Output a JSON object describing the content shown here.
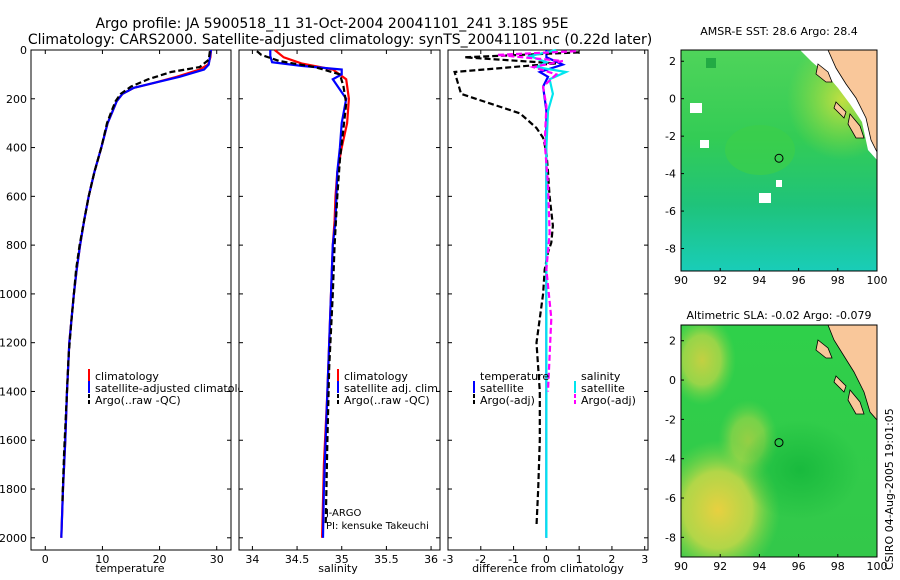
{
  "title_line1": "Argo profile: JA 5900518_11 31-Oct-2004 20041101_241 3.18S 95E",
  "title_line2": "Climatology: CARS2000. Satellite-adjusted climatology: synTS_20041101.nc (0.22d later)",
  "side_stamp": "CSIRO 04-Aug-2005 19:01:05",
  "colors": {
    "climatology": "#ff0000",
    "satellite": "#0000ff",
    "argo": "#000000",
    "satellite_sal": "#00e5ee",
    "argo_sal": "#ff00ff"
  },
  "chart_data": [
    {
      "id": "temperature",
      "type": "line",
      "xlabel": "temperature",
      "ylabel": "",
      "xlim": [
        -2.5,
        32.5
      ],
      "ylim": [
        2050,
        0
      ],
      "xticks": [
        0,
        10,
        20,
        30
      ],
      "yticks": [
        0,
        200,
        400,
        600,
        800,
        1000,
        1200,
        1400,
        1600,
        1800,
        2000
      ],
      "legend": [
        "climatology",
        "satellite-adjusted climatology",
        "Argo(..raw -QC)"
      ],
      "series": [
        {
          "name": "climatology",
          "color": "#ff0000",
          "dashed": false,
          "x": [
            29.0,
            28.9,
            28.5,
            27.0,
            23.0,
            19.0,
            15.5,
            13.5,
            12.5,
            11.8,
            10.9,
            9.8,
            8.6,
            7.6,
            6.8,
            6.1,
            5.5,
            5.0,
            4.6,
            4.2,
            3.8,
            3.5,
            3.1,
            2.8
          ],
          "y": [
            0,
            30,
            60,
            80,
            110,
            135,
            155,
            180,
            210,
            250,
            300,
            400,
            500,
            600,
            700,
            800,
            900,
            1000,
            1100,
            1200,
            1400,
            1600,
            1800,
            2000
          ]
        },
        {
          "name": "satellite-adjusted climatology",
          "color": "#0000ff",
          "dashed": false,
          "x": [
            29.0,
            28.8,
            28.6,
            27.8,
            23.5,
            19.0,
            15.5,
            13.5,
            12.5,
            11.8,
            10.9,
            9.8,
            8.6,
            7.6,
            6.8,
            6.1,
            5.5,
            5.0,
            4.6,
            4.2,
            3.8,
            3.5,
            3.1,
            2.8
          ],
          "y": [
            0,
            30,
            60,
            80,
            110,
            135,
            155,
            180,
            210,
            250,
            300,
            400,
            500,
            600,
            700,
            800,
            900,
            1000,
            1100,
            1200,
            1400,
            1600,
            1800,
            2000
          ]
        },
        {
          "name": "Argo(..raw -QC)",
          "color": "#000000",
          "dashed": true,
          "x": [
            28.8,
            28.6,
            27.0,
            22.0,
            18.0,
            15.0,
            13.2,
            12.3,
            11.6,
            10.8,
            9.8,
            8.6,
            7.6,
            6.8,
            6.0,
            5.4,
            5.0,
            4.6,
            4.1,
            3.7,
            3.3,
            3.0
          ],
          "y": [
            5,
            40,
            70,
            90,
            120,
            150,
            180,
            210,
            250,
            300,
            400,
            500,
            600,
            700,
            800,
            900,
            1000,
            1100,
            1250,
            1450,
            1650,
            1850
          ]
        }
      ]
    },
    {
      "id": "salinity",
      "type": "line",
      "xlabel": "salinity",
      "ylabel": "",
      "xlim": [
        33.85,
        36.1
      ],
      "ylim": [
        2050,
        0
      ],
      "xticks": [
        34,
        34.5,
        35,
        35.5,
        36
      ],
      "yticks": [],
      "legend": [
        "climatology",
        "satellite adj. clim.",
        "Argo(..raw -QC)"
      ],
      "annotations": [
        "J-ARGO",
        "PI: kensuke Takeuchi"
      ],
      "series": [
        {
          "name": "climatology",
          "color": "#ff0000",
          "dashed": false,
          "x": [
            34.25,
            34.35,
            34.55,
            34.9,
            35.05,
            35.08,
            35.06,
            35.0,
            34.95,
            34.93,
            34.92,
            34.9,
            34.88,
            34.86,
            34.84,
            34.8,
            34.78
          ],
          "y": [
            0,
            30,
            55,
            80,
            120,
            200,
            300,
            400,
            500,
            600,
            700,
            800,
            1000,
            1200,
            1400,
            1700,
            2000
          ]
        },
        {
          "name": "satellite adj. clim.",
          "color": "#0000ff",
          "dashed": false,
          "x": [
            34.2,
            34.2,
            34.22,
            34.55,
            35.0,
            35.0,
            34.9,
            35.05,
            35.0,
            34.98,
            34.95,
            34.94,
            34.93,
            34.9,
            34.88,
            34.86,
            34.84,
            34.82,
            34.8,
            34.79
          ],
          "y": [
            0,
            25,
            50,
            65,
            80,
            100,
            120,
            200,
            300,
            400,
            500,
            600,
            700,
            800,
            1000,
            1200,
            1400,
            1600,
            1800,
            2000
          ]
        },
        {
          "name": "Argo(..raw -QC)",
          "color": "#000000",
          "dashed": true,
          "x": [
            34.05,
            34.1,
            34.3,
            34.7,
            34.98,
            35.02,
            35.05,
            35.02,
            34.98,
            34.95,
            34.92,
            34.9,
            34.86,
            34.84,
            34.82
          ],
          "y": [
            5,
            20,
            45,
            70,
            100,
            150,
            220,
            320,
            450,
            600,
            800,
            1000,
            1300,
            1600,
            1950
          ]
        }
      ]
    },
    {
      "id": "difference",
      "type": "line",
      "xlabel": "difference from climatology",
      "ylabel": "",
      "xlim": [
        -3,
        3.1
      ],
      "ylim": [
        2050,
        0
      ],
      "xticks": [
        -3,
        -2,
        -1,
        0,
        1,
        2,
        3
      ],
      "yticks": [],
      "legend_left": [
        "temperature",
        "satellite",
        "Argo(-adj)"
      ],
      "legend_right": [
        "salinity",
        "satellite",
        "Argo(-adj)"
      ],
      "series": [
        {
          "name": "temperature satellite",
          "color": "#0000ff",
          "dashed": false,
          "x": [
            0.0,
            0.0,
            0.5,
            -0.2,
            0.05,
            -0.1,
            0.0,
            0.0,
            0.0,
            0.0,
            0.0,
            0.0
          ],
          "y": [
            0,
            30,
            60,
            90,
            110,
            150,
            250,
            400,
            700,
            1000,
            1500,
            2000
          ]
        },
        {
          "name": "temperature Argo(-adj)",
          "color": "#000000",
          "dashed": true,
          "x": [
            1.0,
            -2.5,
            0.3,
            -2.8,
            -2.6,
            -0.8,
            -0.3,
            -0.1,
            0.0,
            0.05,
            0.1,
            0.2,
            0.15,
            0.05,
            -0.05,
            -0.1,
            -0.2,
            -0.3,
            -0.2,
            -0.2,
            -0.25,
            -0.3
          ],
          "y": [
            10,
            30,
            55,
            90,
            180,
            260,
            320,
            360,
            420,
            500,
            600,
            720,
            790,
            830,
            900,
            1000,
            1100,
            1200,
            1400,
            1600,
            1800,
            1950
          ]
        },
        {
          "name": "salinity satellite",
          "color": "#00e5ee",
          "dashed": false,
          "x": [
            0.3,
            -0.5,
            0.0,
            -0.3,
            0.6,
            0.1,
            0.2,
            0.05,
            0.0,
            0.0,
            0.0,
            0.0,
            0.0
          ],
          "y": [
            0,
            25,
            50,
            70,
            90,
            120,
            180,
            250,
            400,
            700,
            1000,
            1500,
            2000
          ]
        },
        {
          "name": "salinity Argo(-adj)",
          "color": "#ff00ff",
          "dashed": true,
          "x": [
            0.9,
            -1.5,
            0.5,
            -0.4,
            0.3,
            -0.1,
            0.0,
            -0.05,
            0.05,
            0.1,
            0.0,
            0.15,
            0.05
          ],
          "y": [
            5,
            20,
            45,
            70,
            100,
            150,
            230,
            380,
            550,
            750,
            900,
            1100,
            1400
          ]
        }
      ]
    },
    {
      "id": "sst_map",
      "type": "heatmap",
      "title": "AMSR-E SST: 28.6 Argo: 28.4",
      "xlim": [
        90,
        100
      ],
      "ylim": [
        -9.2,
        2.6
      ],
      "xticks": [
        90,
        92,
        94,
        96,
        98,
        100
      ],
      "yticks": [
        2,
        0,
        -2,
        -4,
        -6,
        -8
      ],
      "marker": [
        95.0,
        -3.18
      ]
    },
    {
      "id": "sla_map",
      "type": "heatmap",
      "title": "Altimetric SLA: -0.02 Argo: -0.079",
      "xlim": [
        90,
        100
      ],
      "ylim": [
        -9.0,
        2.8
      ],
      "xticks": [
        90,
        92,
        94,
        96,
        98,
        100
      ],
      "yticks": [
        2,
        0,
        -2,
        -4,
        -6,
        -8
      ],
      "marker": [
        95.0,
        -3.18
      ]
    }
  ]
}
